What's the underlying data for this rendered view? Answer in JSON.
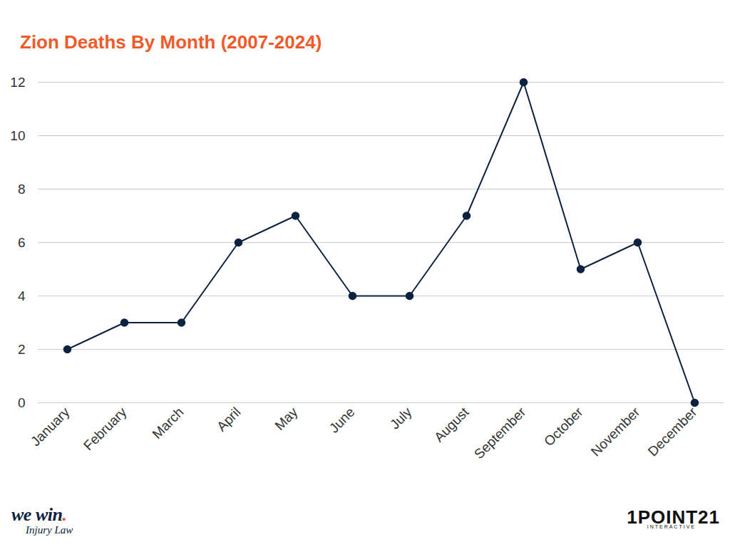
{
  "chart_data": {
    "type": "line",
    "title": "Zion Deaths By Month (2007-2024)",
    "categories": [
      "January",
      "February",
      "March",
      "April",
      "May",
      "June",
      "July",
      "August",
      "September",
      "October",
      "November",
      "December"
    ],
    "values": [
      2,
      3,
      3,
      6,
      7,
      4,
      4,
      7,
      12,
      5,
      6,
      0
    ],
    "color": "#0d2240",
    "marker": "circle",
    "ylim": [
      0,
      12
    ],
    "yticks": [
      0,
      2,
      4,
      6,
      8,
      10,
      12
    ],
    "grid": true
  },
  "branding": {
    "left": {
      "name": "we win.",
      "tagline": "Injury Law"
    },
    "right": {
      "name": "1POINT21",
      "tagline": "INTERACTIVE"
    }
  }
}
